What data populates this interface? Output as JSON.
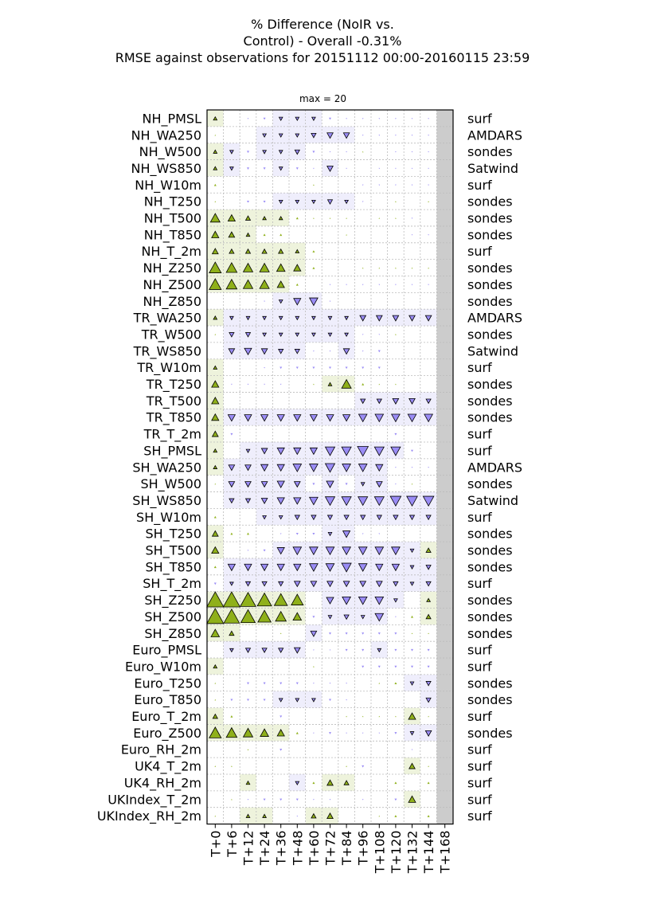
{
  "title_lines": [
    "% Difference (NoIR vs.",
    "Control) - Overall -0.31%",
    "RMSE against observations for 20151112 00:00-20160115 23:59"
  ],
  "max_label": "max = 20",
  "colors": {
    "positive_fill": "#8fb01a",
    "positive_bg": "#eef3dc",
    "negative_fill": "#9a8cf5",
    "negative_bg": "#efeefc",
    "missing": "#cccccc"
  },
  "chart_data": {
    "type": "heatmap",
    "description_of_values": "percent difference per forecast lead time; triangle up = positive, triangle down = negative; size proportional to magnitude",
    "max": 20,
    "x": [
      "T+0",
      "T+6",
      "T+12",
      "T+24",
      "T+36",
      "T+48",
      "T+60",
      "T+72",
      "T+84",
      "T+96",
      "T+108",
      "T+120",
      "T+132",
      "T+144",
      "T+168"
    ],
    "rows": [
      {
        "label": "NH_PMSL",
        "obs": "surf",
        "values": [
          3,
          0,
          -1,
          -2,
          -3,
          -3,
          -3,
          -2,
          -1,
          -1,
          -1,
          -1,
          -1,
          -1,
          null
        ]
      },
      {
        "label": "NH_WA250",
        "obs": "AMDARS",
        "values": [
          1,
          0,
          0,
          -3,
          -3,
          -3,
          -4,
          -5,
          -5,
          -1,
          -1,
          -1,
          -1,
          -1,
          null
        ]
      },
      {
        "label": "NH_W500",
        "obs": "sondes",
        "values": [
          3,
          -3,
          -2,
          -3,
          -3,
          -4,
          -2,
          -1,
          -1,
          1,
          0,
          -1,
          -1,
          -1,
          null
        ]
      },
      {
        "label": "NH_WS850",
        "obs": "Satwind",
        "values": [
          3,
          -3,
          -2,
          -2,
          -3,
          -2,
          -1,
          -5,
          -1,
          0,
          -1,
          -1,
          -1,
          -1,
          null
        ]
      },
      {
        "label": "NH_W10m",
        "obs": "surf",
        "values": [
          2,
          0,
          0,
          0,
          0,
          0,
          1,
          0,
          0,
          -1,
          -1,
          -1,
          -1,
          -1,
          null
        ]
      },
      {
        "label": "NH_T250",
        "obs": "sondes",
        "values": [
          1,
          0,
          -2,
          -2,
          -3,
          -3,
          -3,
          -4,
          -3,
          -1,
          0,
          1,
          0,
          1,
          null
        ]
      },
      {
        "label": "NH_T500",
        "obs": "sondes",
        "values": [
          8,
          6,
          4,
          3,
          3,
          2,
          1,
          1,
          1,
          0,
          1,
          1,
          -1,
          0,
          null
        ]
      },
      {
        "label": "NH_T850",
        "obs": "sondes",
        "values": [
          6,
          5,
          3,
          2,
          2,
          0,
          0,
          0,
          1,
          0,
          0,
          0,
          -1,
          -1,
          null
        ]
      },
      {
        "label": "NH_T_2m",
        "obs": "surf",
        "values": [
          5,
          4,
          4,
          4,
          4,
          3,
          2,
          0,
          0,
          0,
          0,
          0,
          0,
          0,
          null
        ]
      },
      {
        "label": "NH_Z250",
        "obs": "sondes",
        "values": [
          10,
          9,
          8,
          8,
          7,
          6,
          2,
          0,
          0,
          1,
          1,
          1,
          1,
          1,
          null
        ]
      },
      {
        "label": "NH_Z500",
        "obs": "sondes",
        "values": [
          10,
          9,
          8,
          8,
          6,
          2,
          0,
          -1,
          -1,
          -1,
          -1,
          -1,
          -1,
          -1,
          null
        ]
      },
      {
        "label": "NH_Z850",
        "obs": "sondes",
        "values": [
          0,
          0,
          0,
          -1,
          -3,
          -6,
          -7,
          -1,
          0,
          0,
          0,
          0,
          0,
          0,
          null
        ]
      },
      {
        "label": "TR_WA250",
        "obs": "AMDARS",
        "values": [
          3,
          -3,
          -3,
          -3,
          -3,
          -3,
          -3,
          -3,
          -3,
          -5,
          -5,
          -5,
          -5,
          -5,
          null
        ]
      },
      {
        "label": "TR_W500",
        "obs": "sondes",
        "values": [
          1,
          -4,
          -4,
          -3,
          -3,
          -3,
          -3,
          -3,
          -3,
          -1,
          -1,
          1,
          0,
          0,
          null
        ]
      },
      {
        "label": "TR_WS850",
        "obs": "Satwind",
        "values": [
          0,
          -5,
          -6,
          -5,
          -4,
          -4,
          -1,
          -1,
          -5,
          -1,
          -2,
          0,
          0,
          0,
          null
        ]
      },
      {
        "label": "TR_W10m",
        "obs": "surf",
        "values": [
          3,
          0,
          0,
          -1,
          -2,
          -2,
          -2,
          -2,
          -2,
          -2,
          -2,
          0,
          0,
          0,
          null
        ]
      },
      {
        "label": "TR_T250",
        "obs": "sondes",
        "values": [
          6,
          -1,
          -1,
          -1,
          -1,
          0,
          1,
          3,
          8,
          2,
          1,
          1,
          0,
          0,
          null
        ]
      },
      {
        "label": "TR_T500",
        "obs": "sondes",
        "values": [
          6,
          0,
          0,
          0,
          0,
          0,
          0,
          0,
          0,
          -4,
          -4,
          -5,
          -5,
          -4,
          null
        ]
      },
      {
        "label": "TR_T850",
        "obs": "sondes",
        "values": [
          6,
          -6,
          -6,
          -6,
          -6,
          -6,
          -6,
          -6,
          -6,
          -7,
          -7,
          -7,
          -7,
          -7,
          null
        ]
      },
      {
        "label": "TR_T_2m",
        "obs": "surf",
        "values": [
          5,
          -2,
          0,
          0,
          0,
          0,
          0,
          0,
          0,
          0,
          0,
          -2,
          0,
          0,
          null
        ]
      },
      {
        "label": "SH_PMSL",
        "obs": "surf",
        "values": [
          3,
          0,
          -3,
          -5,
          -6,
          -6,
          -6,
          -8,
          -8,
          -9,
          -8,
          -8,
          -2,
          0,
          null
        ]
      },
      {
        "label": "SH_WA250",
        "obs": "AMDARS",
        "values": [
          3,
          -5,
          -5,
          -6,
          -6,
          -7,
          -7,
          -8,
          -7,
          -7,
          -6,
          -1,
          -1,
          -1,
          null
        ]
      },
      {
        "label": "SH_W500",
        "obs": "sondes",
        "values": [
          1,
          -5,
          -5,
          -5,
          -6,
          -5,
          -2,
          -6,
          -2,
          -3,
          -5,
          -1,
          1,
          0,
          null
        ]
      },
      {
        "label": "SH_WS850",
        "obs": "Satwind",
        "values": [
          0,
          -4,
          -4,
          -5,
          -6,
          -6,
          -7,
          -8,
          -8,
          -8,
          -8,
          -9,
          -9,
          -9,
          null
        ]
      },
      {
        "label": "SH_W10m",
        "obs": "surf",
        "values": [
          2,
          0,
          0,
          -3,
          -3,
          -4,
          -4,
          -4,
          -4,
          -4,
          -4,
          -4,
          -4,
          -4,
          null
        ]
      },
      {
        "label": "SH_T250",
        "obs": "sondes",
        "values": [
          5,
          2,
          2,
          0,
          -1,
          -2,
          -2,
          -3,
          -6,
          -1,
          -1,
          0,
          0,
          0,
          null
        ]
      },
      {
        "label": "SH_T500",
        "obs": "sondes",
        "values": [
          6,
          0,
          -1,
          -2,
          -6,
          -7,
          -7,
          -7,
          -7,
          -7,
          -7,
          -7,
          -3,
          4,
          null
        ]
      },
      {
        "label": "SH_T850",
        "obs": "sondes",
        "values": [
          2,
          -6,
          -6,
          -6,
          -6,
          -6,
          -7,
          -7,
          -8,
          -7,
          -6,
          -6,
          -3,
          -4,
          null
        ]
      },
      {
        "label": "SH_T_2m",
        "obs": "surf",
        "values": [
          -2,
          -3,
          -4,
          -4,
          -4,
          -5,
          -5,
          -5,
          -5,
          -5,
          -5,
          -4,
          -3,
          -4,
          null
        ]
      },
      {
        "label": "SH_Z250",
        "obs": "sondes",
        "values": [
          14,
          14,
          13,
          12,
          11,
          10,
          0,
          -6,
          -7,
          -7,
          -7,
          -3,
          0,
          3,
          null
        ]
      },
      {
        "label": "SH_Z500",
        "obs": "sondes",
        "values": [
          14,
          13,
          12,
          11,
          9,
          7,
          -2,
          -3,
          -4,
          -3,
          -7,
          -1,
          2,
          4,
          null
        ]
      },
      {
        "label": "SH_Z850",
        "obs": "sondes",
        "values": [
          7,
          4,
          0,
          0,
          1,
          0,
          -5,
          -2,
          -2,
          -2,
          -2,
          -2,
          1,
          1,
          null
        ]
      },
      {
        "label": "Euro_PMSL",
        "obs": "surf",
        "values": [
          0,
          -3,
          -4,
          -4,
          -4,
          -5,
          -1,
          -1,
          -2,
          -2,
          -3,
          -2,
          -2,
          -2,
          null
        ]
      },
      {
        "label": "Euro_W10m",
        "obs": "surf",
        "values": [
          3,
          0,
          0,
          0,
          0,
          0,
          1,
          0,
          0,
          -2,
          -2,
          -2,
          -2,
          -2,
          null
        ]
      },
      {
        "label": "Euro_T250",
        "obs": "sondes",
        "values": [
          1,
          0,
          -2,
          -2,
          -2,
          -2,
          -1,
          -1,
          -1,
          0,
          1,
          2,
          -3,
          -4,
          null
        ]
      },
      {
        "label": "Euro_T850",
        "obs": "sondes",
        "values": [
          1,
          -2,
          -2,
          -2,
          -3,
          -3,
          -3,
          -2,
          -1,
          0,
          0,
          0,
          0,
          -4,
          null
        ]
      },
      {
        "label": "Euro_T_2m",
        "obs": "surf",
        "values": [
          4,
          2,
          0,
          0,
          -2,
          0,
          0,
          0,
          1,
          1,
          1,
          1,
          6,
          1,
          null
        ]
      },
      {
        "label": "Euro_Z500",
        "obs": "sondes",
        "values": [
          10,
          9,
          8,
          7,
          6,
          2,
          -1,
          -2,
          -1,
          -1,
          -1,
          -2,
          -3,
          -5,
          null
        ]
      },
      {
        "label": "Euro_RH_2m",
        "obs": "surf",
        "values": [
          0,
          0,
          1,
          0,
          -2,
          0,
          0,
          0,
          0,
          0,
          0,
          0,
          -1,
          0,
          null
        ]
      },
      {
        "label": "UK4_T_2m",
        "obs": "surf",
        "values": [
          1,
          1,
          0,
          0,
          0,
          0,
          0,
          0,
          1,
          -2,
          0,
          0,
          5,
          1,
          null
        ]
      },
      {
        "label": "UK4_RH_2m",
        "obs": "surf",
        "values": [
          0,
          0,
          3,
          0,
          0,
          -3,
          2,
          5,
          4,
          0,
          0,
          2,
          0,
          2,
          null
        ]
      },
      {
        "label": "UKIndex_T_2m",
        "obs": "surf",
        "values": [
          0,
          1,
          -1,
          -2,
          -2,
          -2,
          -1,
          -1,
          0,
          -1,
          0,
          -2,
          6,
          0,
          null
        ]
      },
      {
        "label": "UKIndex_RH_2m",
        "obs": "surf",
        "values": [
          1,
          0,
          3,
          3,
          0,
          -1,
          4,
          5,
          0,
          0,
          1,
          2,
          0,
          2,
          null
        ]
      }
    ]
  }
}
